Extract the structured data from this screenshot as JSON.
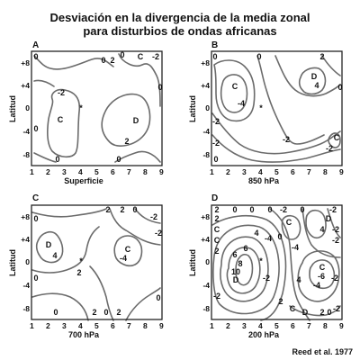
{
  "title_line1": "Desviación en la divergencia de la media zonal",
  "title_line2": "para disturbios de ondas africanas",
  "citation": "Reed et al. 1977",
  "chart_data": [
    {
      "type": "contour",
      "panel": "A",
      "xlabel": "Superficie",
      "ylabel": "Latitud",
      "x_ticks": [
        "1",
        "2",
        "3",
        "4",
        "5",
        "6",
        "7",
        "8",
        "9"
      ],
      "y_ticks": [
        "+8",
        "+4",
        "0",
        "-4",
        "-8"
      ],
      "xlim": [
        1,
        9
      ],
      "ylim": [
        -10,
        10
      ],
      "contour_labels": [
        "0",
        "0",
        "2",
        "0",
        "C",
        "-2",
        "0",
        "-2",
        "C",
        "D",
        "2",
        "0",
        "0",
        "0"
      ],
      "centers": [
        "C",
        "D",
        "C"
      ]
    },
    {
      "type": "contour",
      "panel": "B",
      "xlabel": "850 hPa",
      "ylabel": "Latitud",
      "x_ticks": [
        "1",
        "2",
        "3",
        "4",
        "5",
        "6",
        "7",
        "8",
        "9"
      ],
      "y_ticks": [
        "+8",
        "+4",
        "0",
        "-4",
        "-8"
      ],
      "xlim": [
        1,
        9
      ],
      "ylim": [
        -10,
        10
      ],
      "contour_labels": [
        "0",
        "0",
        "2",
        "C",
        "D",
        "4",
        "-4",
        "0",
        "-2",
        "-2",
        "0",
        "-2",
        "-2",
        "C"
      ],
      "centers": [
        "C",
        "D",
        "C",
        "C"
      ]
    },
    {
      "type": "contour",
      "panel": "C",
      "xlabel": "700 hPa",
      "ylabel": "Latitud",
      "x_ticks": [
        "1",
        "2",
        "3",
        "4",
        "5",
        "6",
        "7",
        "8",
        "9"
      ],
      "y_ticks": [
        "+8",
        "+4",
        "0",
        "-4",
        "-8"
      ],
      "xlim": [
        1,
        9
      ],
      "ylim": [
        -10,
        10
      ],
      "contour_labels": [
        "2",
        "2",
        "0",
        "-2",
        "0",
        "-2",
        "D",
        "4",
        "C",
        "-4",
        "2",
        "0",
        "2",
        "0",
        "2",
        "0",
        "0"
      ],
      "centers": [
        "D",
        "C"
      ]
    },
    {
      "type": "contour",
      "panel": "D",
      "xlabel": "200 hPa",
      "ylabel": "Latitud",
      "x_ticks": [
        "1",
        "2",
        "3",
        "4",
        "5",
        "6",
        "7",
        "8",
        "9"
      ],
      "y_ticks": [
        "+8",
        "+4",
        "0",
        "-4",
        "-8"
      ],
      "xlim": [
        1,
        9
      ],
      "ylim": [
        -10,
        10
      ],
      "contour_labels": [
        "2",
        "0",
        "0",
        "0",
        "-2",
        "0",
        "-2",
        "2",
        "C",
        "D",
        "C",
        "C",
        "4",
        "-2",
        "2",
        "6",
        "0",
        "4",
        "-4",
        "-4",
        "-2",
        "6",
        "8",
        "10",
        "D",
        "C",
        "-6",
        "-2",
        "-2",
        "4",
        "-4",
        "-2",
        "2",
        "C",
        "D",
        "2",
        "0",
        "-2"
      ],
      "centers": [
        "C",
        "D",
        "C",
        "C",
        "D",
        "C",
        "D",
        "C",
        "D"
      ]
    }
  ]
}
